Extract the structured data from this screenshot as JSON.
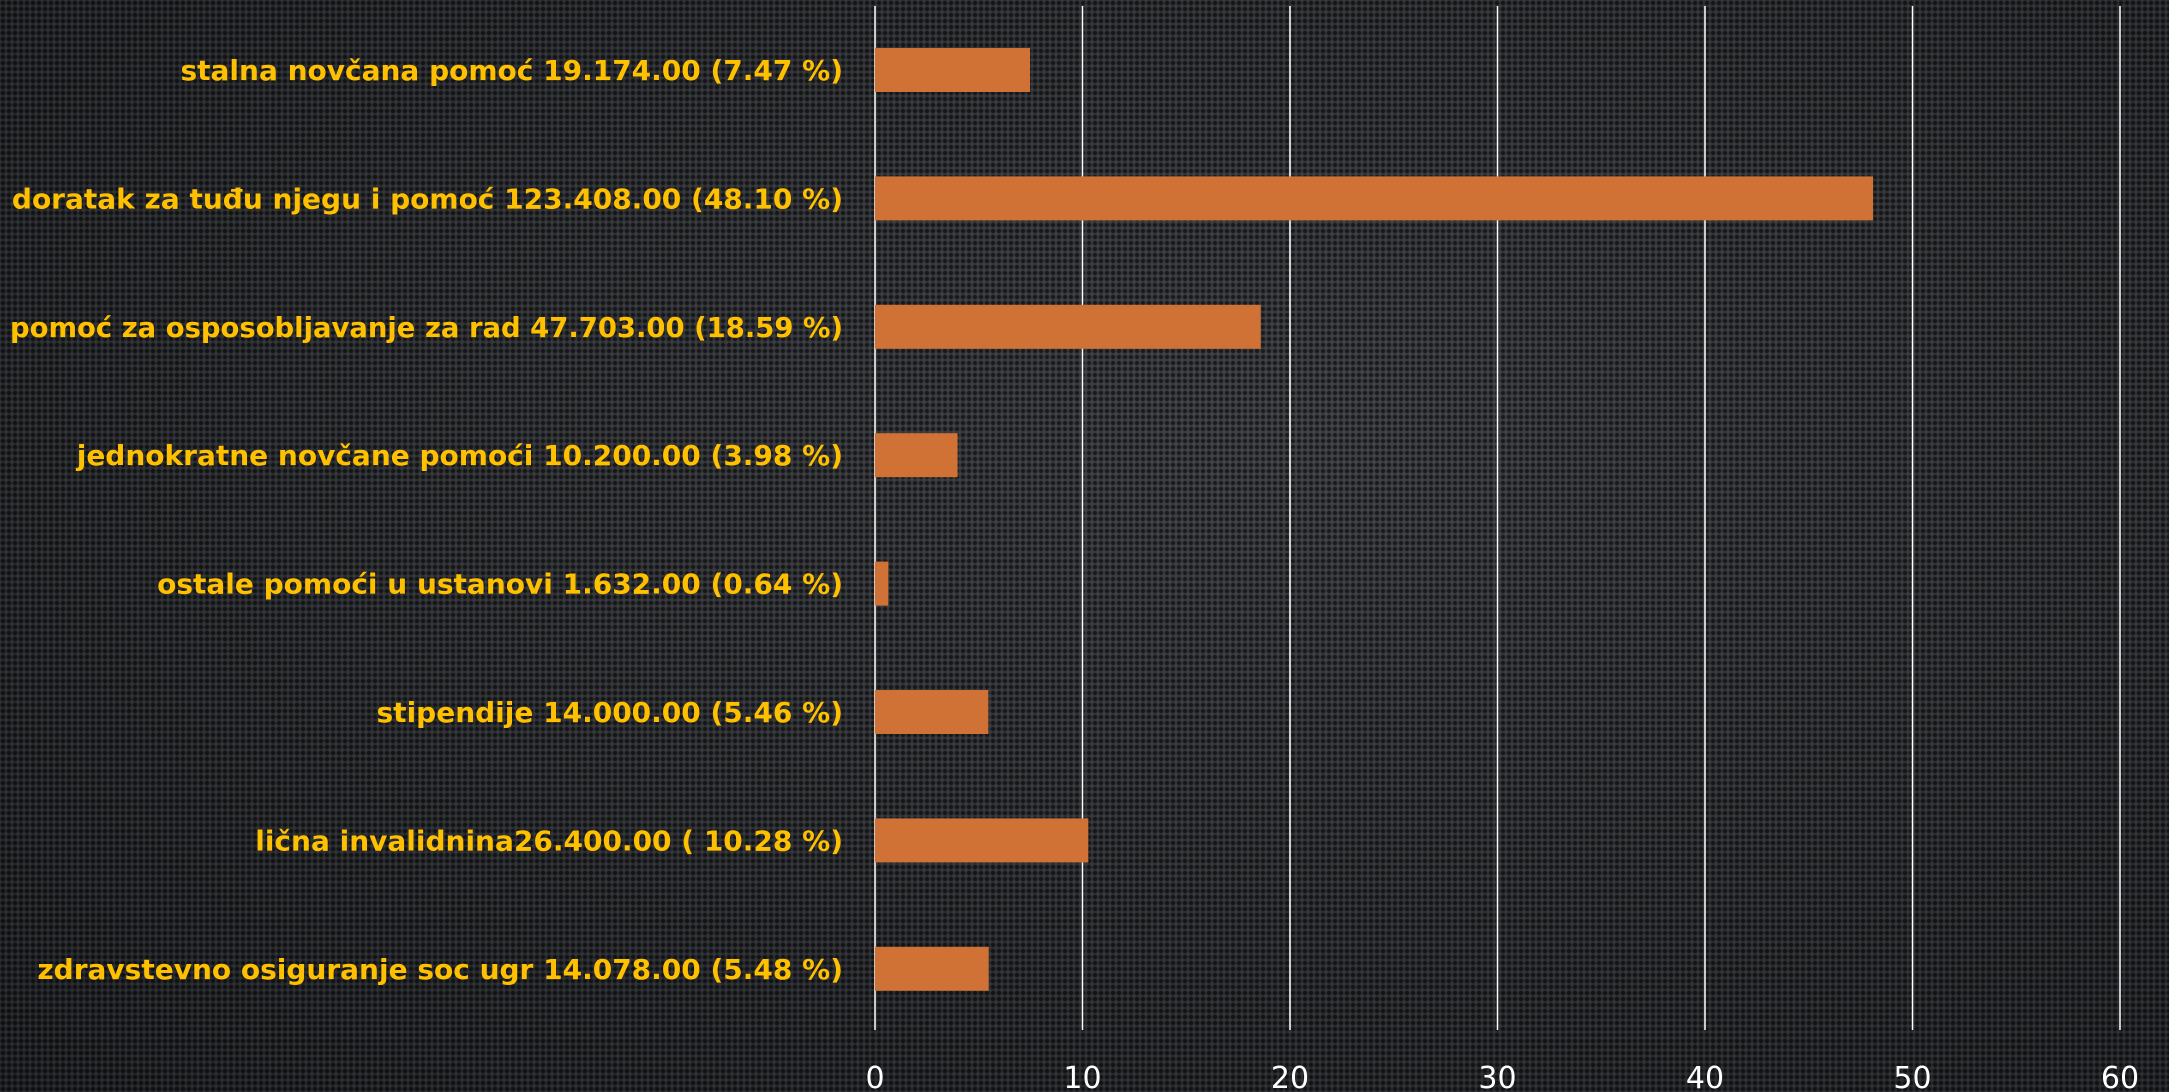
{
  "chart_data": {
    "type": "bar",
    "orientation": "horizontal",
    "categories": [
      "stalna novčana pomoć 19.174.00 (7.47 %)",
      "doratak za tuđu njegu i pomoć 123.408.00 (48.10 %)",
      "pomoć za osposobljavanje za rad 47.703.00 (18.59 %)",
      "jednokratne novčane pomoći 10.200.00 (3.98 %)",
      "ostale pomoći u ustanovi 1.632.00 (0.64 %)",
      "stipendije 14.000.00 (5.46 %)",
      "lična invalidnina26.400.00 ( 10.28 %)",
      "zdravstevno osiguranje soc ugr 14.078.00  (5.48 %)"
    ],
    "values": [
      7.47,
      48.1,
      18.59,
      3.98,
      0.64,
      5.46,
      10.28,
      5.48
    ],
    "xlim": [
      0,
      60
    ],
    "xticks": [
      "0",
      "10",
      "20",
      "30",
      "40",
      "50",
      "60"
    ],
    "title": "",
    "xlabel": "",
    "ylabel": "",
    "grid": "vertical",
    "legend": "none",
    "colors": {
      "bar": "#d07236",
      "label": "#ffc000",
      "grid": "#ffffff",
      "tick": "#ffffff"
    }
  }
}
